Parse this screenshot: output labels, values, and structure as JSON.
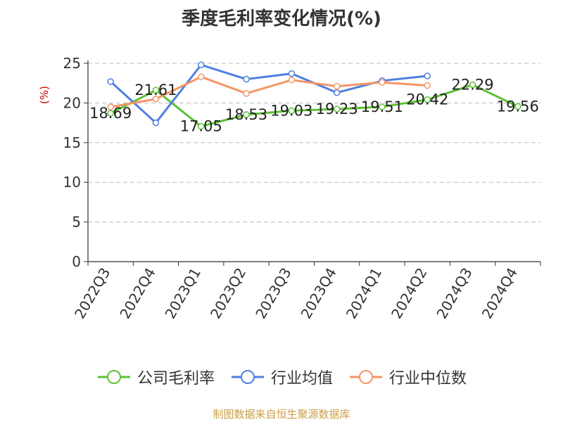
{
  "chart_data": {
    "type": "line",
    "title": "季度毛利率变化情况(%)",
    "ylabel": "(%)",
    "xlabel": "",
    "ylim": [
      0,
      25
    ],
    "yticks": [
      0,
      5,
      10,
      15,
      20,
      25
    ],
    "grid": true,
    "legend_position": "bottom",
    "categories": [
      "2022Q3",
      "2022Q4",
      "2023Q1",
      "2023Q2",
      "2023Q3",
      "2023Q4",
      "2024Q1",
      "2024Q2",
      "2024Q3",
      "2024Q4"
    ],
    "series": [
      {
        "name": "公司毛利率",
        "color": "#5cc136",
        "values": [
          18.69,
          21.61,
          17.05,
          18.53,
          19.03,
          19.23,
          19.51,
          20.42,
          22.29,
          19.56
        ],
        "show_labels": true
      },
      {
        "name": "行业均值",
        "color": "#4f7fdf",
        "values": [
          22.7,
          17.5,
          24.8,
          23.0,
          23.7,
          21.3,
          22.8,
          23.4,
          null,
          null
        ],
        "show_labels": false
      },
      {
        "name": "行业中位数",
        "color": "#f59666",
        "values": [
          19.5,
          20.5,
          23.3,
          21.2,
          22.9,
          22.1,
          22.6,
          22.2,
          null,
          null
        ],
        "show_labels": false
      }
    ]
  },
  "source_note": "制图数据来自恒生聚源数据库"
}
